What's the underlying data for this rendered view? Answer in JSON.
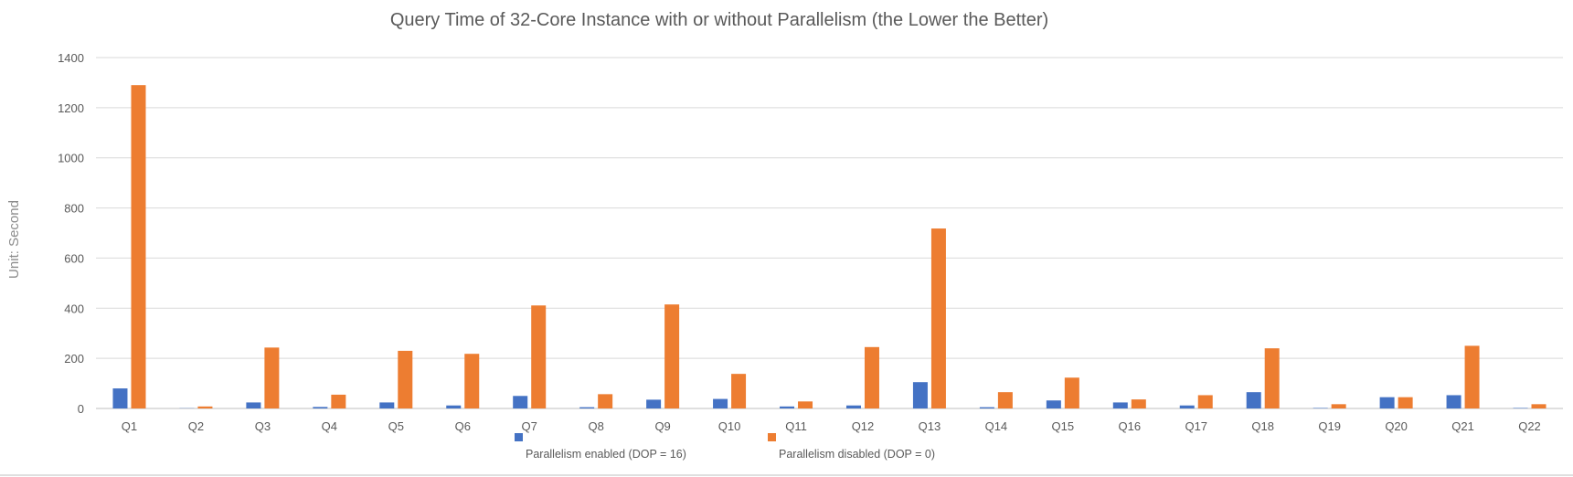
{
  "chart_data": {
    "type": "bar",
    "title": "Query Time of 32-Core Instance with or without Parallelism (the Lower the Better)",
    "xlabel": "",
    "ylabel": "Unit: Second",
    "ylim": [
      0,
      1400
    ],
    "yticks": [
      0,
      200,
      400,
      600,
      800,
      1000,
      1200,
      1400
    ],
    "grid": true,
    "legend_position": "bottom",
    "categories": [
      "Q1",
      "Q2",
      "Q3",
      "Q4",
      "Q5",
      "Q6",
      "Q7",
      "Q8",
      "Q9",
      "Q10",
      "Q11",
      "Q12",
      "Q13",
      "Q14",
      "Q15",
      "Q16",
      "Q17",
      "Q18",
      "Q19",
      "Q20",
      "Q21",
      "Q22"
    ],
    "series": [
      {
        "name": "Parallelism enabled (DOP = 16)",
        "color": "#4472C4",
        "values": [
          80,
          1,
          24,
          6,
          24,
          12,
          50,
          5,
          35,
          38,
          8,
          12,
          105,
          5,
          32,
          24,
          12,
          65,
          2,
          45,
          53,
          2
        ]
      },
      {
        "name": "Parallelism disabled (DOP = 0)",
        "color": "#ED7D31",
        "values": [
          1290,
          8,
          243,
          55,
          230,
          218,
          411,
          57,
          415,
          138,
          28,
          245,
          718,
          65,
          123,
          36,
          53,
          240,
          17,
          45,
          250,
          17
        ]
      }
    ]
  }
}
